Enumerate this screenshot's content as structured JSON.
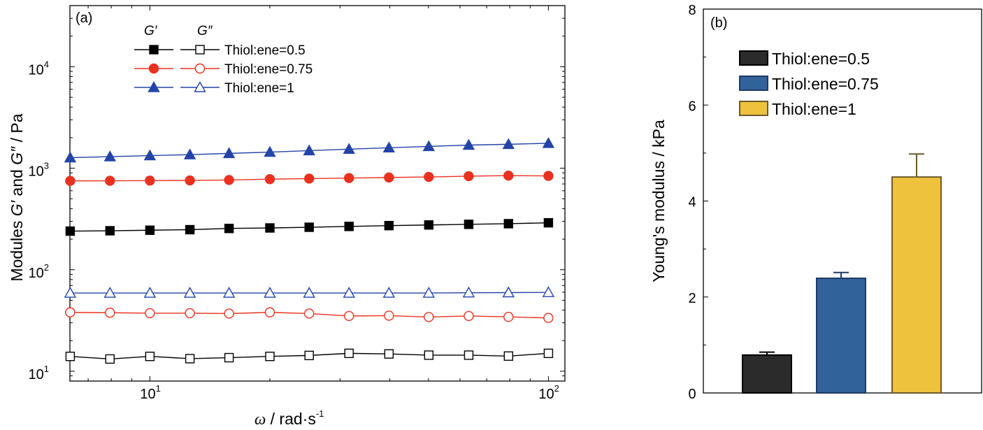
{
  "chart_data": [
    {
      "panel_label": "(a)",
      "type": "line",
      "xscale": "log",
      "yscale": "log",
      "xlim": [
        6.3,
        110
      ],
      "ylim": [
        8,
        40000
      ],
      "xticks": [
        {
          "v": 10,
          "base": "10",
          "exp": "1"
        },
        {
          "v": 100,
          "base": "10",
          "exp": "2"
        }
      ],
      "yticks": [
        {
          "v": 10,
          "base": "10",
          "exp": "1"
        },
        {
          "v": 100,
          "base": "10",
          "exp": "2"
        },
        {
          "v": 1000,
          "base": "10",
          "exp": "3"
        },
        {
          "v": 10000,
          "base": "10",
          "exp": "4"
        }
      ],
      "ylabel": {
        "pre": "Modules ",
        "g1": "G′",
        "mid": " and ",
        "g2": "G″",
        "post": " / Pa"
      },
      "xlabel": {
        "sym": "ω",
        "txt": " / rad·s",
        "exp": "-1"
      },
      "legend": {
        "header_g1": "G′",
        "header_g2": "G″",
        "entries": [
          "Thiol:ene=0.5",
          "Thiol:ene=0.75",
          "Thiol:ene=1"
        ]
      },
      "x": [
        6.31,
        7.94,
        10,
        12.6,
        15.8,
        20,
        25.1,
        31.6,
        39.8,
        50.1,
        63.1,
        79.4,
        100
      ],
      "series": [
        {
          "name": "Thiol:ene=0.5",
          "modulus": "G′",
          "marker": "square",
          "filled": true,
          "color": "#000000",
          "values": [
            240,
            242,
            245,
            248,
            255,
            258,
            262,
            267,
            272,
            276,
            280,
            284,
            290
          ]
        },
        {
          "name": "Thiol:ene=0.75",
          "modulus": "G′",
          "marker": "circle",
          "filled": true,
          "color": "#e8321f",
          "values": [
            750,
            752,
            755,
            758,
            765,
            780,
            790,
            800,
            810,
            820,
            835,
            845,
            840
          ]
        },
        {
          "name": "Thiol:ene=1",
          "modulus": "G′",
          "marker": "triangle",
          "filled": true,
          "color": "#2444a8",
          "values": [
            1270,
            1300,
            1330,
            1360,
            1400,
            1440,
            1490,
            1540,
            1590,
            1640,
            1690,
            1720,
            1760
          ]
        },
        {
          "name": "Thiol:ene=0.5",
          "modulus": "G″",
          "marker": "square",
          "filled": false,
          "color": "#000000",
          "values": [
            14,
            13.2,
            14,
            13.3,
            13.6,
            14,
            14.3,
            15,
            14.8,
            14.4,
            14.4,
            14.1,
            15
          ]
        },
        {
          "name": "Thiol:ene=0.75",
          "modulus": "G″",
          "marker": "circle",
          "filled": false,
          "color": "#e8321f",
          "values": [
            38,
            37.7,
            37.3,
            37.3,
            37,
            38,
            37,
            35,
            35.3,
            34.2,
            35,
            34.3,
            33.5
          ]
        },
        {
          "name": "Thiol:ene=1",
          "modulus": "G″",
          "marker": "triangle",
          "filled": false,
          "color": "#2444a8",
          "values": [
            59,
            59,
            59,
            59,
            59,
            59,
            59,
            59,
            59,
            59,
            59.3,
            59.5,
            59.8
          ]
        }
      ]
    },
    {
      "panel_label": "(b)",
      "type": "bar",
      "ylabel": "Young's modulus / kPa",
      "ylim": [
        0,
        8
      ],
      "yticks": [
        0,
        2,
        4,
        6,
        8
      ],
      "categories": [
        "Thiol:ene=0.5",
        "Thiol:ene=0.75",
        "Thiol:ene=1"
      ],
      "values": [
        0.79,
        2.39,
        4.5
      ],
      "errors": [
        0.06,
        0.12,
        0.48
      ],
      "colors": [
        "#2b2b2b",
        "#32629a",
        "#efc23e"
      ],
      "edge_colors": [
        "#000000",
        "#1f3a66",
        "#6b5a2a"
      ]
    }
  ]
}
